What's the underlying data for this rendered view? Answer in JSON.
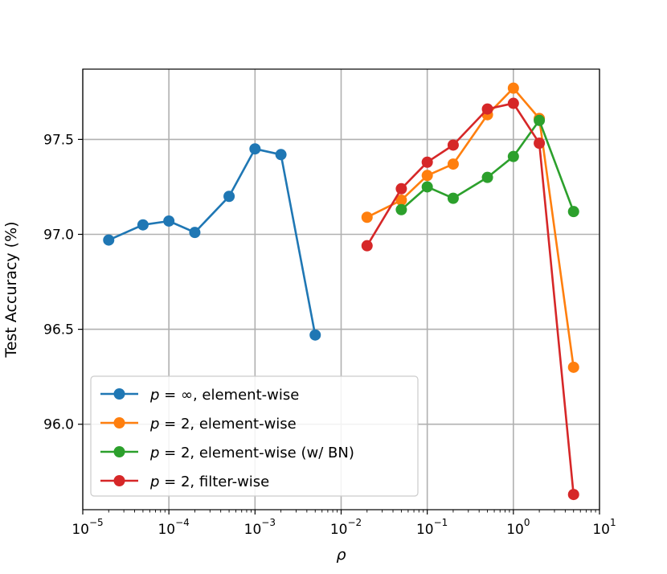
{
  "chart_data": {
    "type": "line",
    "xscale": "log",
    "xlabel": "ρ",
    "ylabel": "Test Accuracy (%)",
    "xlim": [
      1e-05,
      10
    ],
    "ylim": [
      95.55,
      97.87
    ],
    "xticks": [
      {
        "value": 1e-05,
        "base": "10",
        "exp": "−5"
      },
      {
        "value": 0.0001,
        "base": "10",
        "exp": "−4"
      },
      {
        "value": 0.001,
        "base": "10",
        "exp": "−3"
      },
      {
        "value": 0.01,
        "base": "10",
        "exp": "−2"
      },
      {
        "value": 0.1,
        "base": "10",
        "exp": "−1"
      },
      {
        "value": 1,
        "base": "10",
        "exp": "0"
      },
      {
        "value": 10,
        "base": "10",
        "exp": "1"
      }
    ],
    "yticks": [
      {
        "value": 96.0,
        "label": "96.0"
      },
      {
        "value": 96.5,
        "label": "96.5"
      },
      {
        "value": 97.0,
        "label": "97.0"
      },
      {
        "value": 97.5,
        "label": "97.5"
      }
    ],
    "grid": true,
    "legend_position": "lower-left",
    "series": [
      {
        "name_prefix": "p",
        "name_suffix": " = ∞, element-wise",
        "color": "#1f77b4",
        "x": [
          2e-05,
          5e-05,
          0.0001,
          0.0002,
          0.0005,
          0.001,
          0.002,
          0.005
        ],
        "y": [
          96.97,
          97.05,
          97.07,
          97.01,
          97.2,
          97.45,
          97.42,
          96.47
        ]
      },
      {
        "name_prefix": "p",
        "name_suffix": " = 2, element-wise",
        "color": "#ff7f0e",
        "x": [
          0.02,
          0.05,
          0.1,
          0.2,
          0.5,
          1,
          2,
          5
        ],
        "y": [
          97.09,
          97.18,
          97.31,
          97.37,
          97.63,
          97.77,
          97.61,
          96.3
        ]
      },
      {
        "name_prefix": "p",
        "name_suffix": " = 2, element-wise (w/ BN)",
        "color": "#2ca02c",
        "x": [
          0.05,
          0.1,
          0.2,
          0.5,
          1,
          2,
          5
        ],
        "y": [
          97.13,
          97.25,
          97.19,
          97.3,
          97.41,
          97.6,
          97.12
        ]
      },
      {
        "name_prefix": "p",
        "name_suffix": " = 2, filter-wise",
        "color": "#d62728",
        "x": [
          0.02,
          0.05,
          0.1,
          0.2,
          0.5,
          1,
          2,
          5
        ],
        "y": [
          96.94,
          97.24,
          97.38,
          97.47,
          97.66,
          97.69,
          97.48,
          95.63
        ]
      }
    ]
  }
}
